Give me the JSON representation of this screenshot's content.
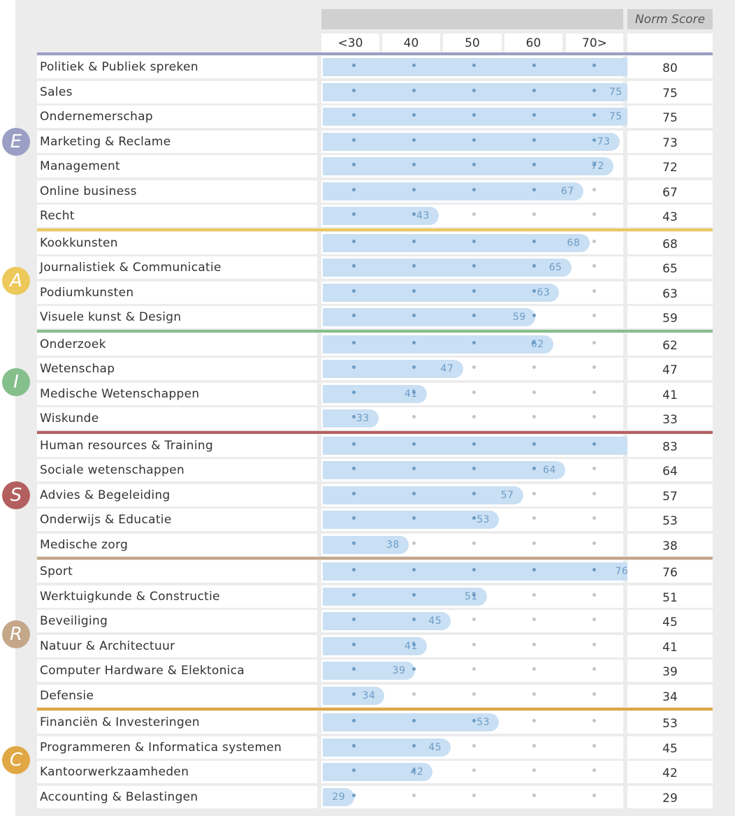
{
  "header": {
    "norm_score": "Norm Score",
    "ticks": [
      "<30",
      "40",
      "50",
      "60",
      "70>"
    ]
  },
  "categories": [
    {
      "letter": "E",
      "color": "#9b9fc5",
      "items": [
        {
          "label": "Politiek & Publiek spreken",
          "value": 80
        },
        {
          "label": "Sales",
          "value": 75
        },
        {
          "label": "Ondernemerschap",
          "value": 75
        },
        {
          "label": "Marketing & Reclame",
          "value": 73
        },
        {
          "label": "Management",
          "value": 72
        },
        {
          "label": "Online business",
          "value": 67
        },
        {
          "label": "Recht",
          "value": 43
        }
      ]
    },
    {
      "letter": "A",
      "color": "#edc85a",
      "items": [
        {
          "label": "Kookkunsten",
          "value": 68
        },
        {
          "label": "Journalistiek & Communicatie",
          "value": 65
        },
        {
          "label": "Podiumkunsten",
          "value": 63
        },
        {
          "label": "Visuele kunst & Design",
          "value": 59
        }
      ]
    },
    {
      "letter": "I",
      "color": "#85bf8c",
      "items": [
        {
          "label": "Onderzoek",
          "value": 62
        },
        {
          "label": "Wetenschap",
          "value": 47
        },
        {
          "label": "Medische Wetenschappen",
          "value": 41
        },
        {
          "label": "Wiskunde",
          "value": 33
        }
      ]
    },
    {
      "letter": "S",
      "color": "#b45f5f",
      "items": [
        {
          "label": "Human resources & Training",
          "value": 83
        },
        {
          "label": "Sociale wetenschappen",
          "value": 64
        },
        {
          "label": "Advies & Begeleiding",
          "value": 57
        },
        {
          "label": "Onderwijs & Educatie",
          "value": 53
        },
        {
          "label": "Medische zorg",
          "value": 38
        }
      ]
    },
    {
      "letter": "R",
      "color": "#c4a789",
      "items": [
        {
          "label": "Sport",
          "value": 76
        },
        {
          "label": "Werktuigkunde & Constructie",
          "value": 51
        },
        {
          "label": "Beveiliging",
          "value": 45
        },
        {
          "label": "Natuur & Architectuur",
          "value": 41
        },
        {
          "label": "Computer Hardware & Elektonica",
          "value": 39
        },
        {
          "label": "Defensie",
          "value": 34
        }
      ]
    },
    {
      "letter": "C",
      "color": "#e0a744",
      "items": [
        {
          "label": "Financiën & Investeringen",
          "value": 53
        },
        {
          "label": "Programmeren & Informatica systemen",
          "value": 45
        },
        {
          "label": "Kantoorwerkzaamheden",
          "value": 42
        },
        {
          "label": "Accounting & Belastingen",
          "value": 29
        }
      ]
    }
  ],
  "chart_data": {
    "type": "bar",
    "orientation": "horizontal",
    "x_ticks": [
      "<30",
      "40",
      "50",
      "60",
      "70>"
    ],
    "categories": [
      "Politiek & Publiek spreken",
      "Sales",
      "Ondernemerschap",
      "Marketing & Reclame",
      "Management",
      "Online business",
      "Recht",
      "Kookkunsten",
      "Journalistiek & Communicatie",
      "Podiumkunsten",
      "Visuele kunst & Design",
      "Onderzoek",
      "Wetenschap",
      "Medische Wetenschappen",
      "Wiskunde",
      "Human resources & Training",
      "Sociale wetenschappen",
      "Advies & Begeleiding",
      "Onderwijs & Educatie",
      "Medische zorg",
      "Sport",
      "Werktuigkunde & Constructie",
      "Beveiliging",
      "Natuur & Architectuur",
      "Computer Hardware & Elektonica",
      "Defensie",
      "Financiën & Investeringen",
      "Programmeren & Informatica systemen",
      "Kantoorwerkzaamheden",
      "Accounting & Belastingen"
    ],
    "values": [
      80,
      75,
      75,
      73,
      72,
      67,
      43,
      68,
      65,
      63,
      59,
      62,
      47,
      41,
      33,
      83,
      64,
      57,
      53,
      38,
      76,
      51,
      45,
      41,
      39,
      34,
      53,
      45,
      42,
      29
    ],
    "groups": [
      "E",
      "A",
      "I",
      "S",
      "R",
      "C"
    ],
    "grid": false
  }
}
